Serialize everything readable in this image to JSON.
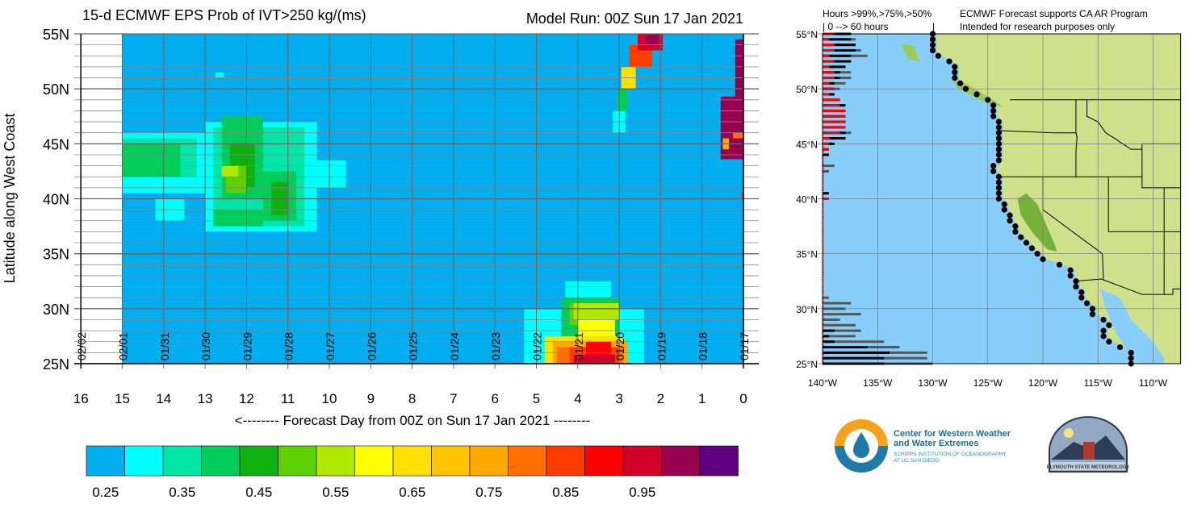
{
  "chart_data": [
    {
      "type": "heatmap",
      "title": "15-d ECMWF EPS Prob of IVT>250 kg/(ms)",
      "subtitle": "Model Run: 00Z Sun 17 Jan 2021",
      "xlabel": "<-------- Forecast Day from 00Z on Sun 17 Jan 2021 --------",
      "ylabel": "Latitude along West Coast",
      "xlim": [
        16,
        0
      ],
      "ylim": [
        25,
        55
      ],
      "x_ticks": [
        "16",
        "15",
        "14",
        "13",
        "12",
        "11",
        "10",
        "9",
        "8",
        "7",
        "6",
        "5",
        "4",
        "3",
        "2",
        "1",
        "0"
      ],
      "y_ticks": [
        "55N",
        "50N",
        "45N",
        "40N",
        "35N",
        "30N",
        "25N"
      ],
      "date_labels": [
        "02/02",
        "02/01",
        "01/31",
        "01/30",
        "01/29",
        "01/28",
        "01/27",
        "01/26",
        "01/25",
        "01/24",
        "01/23",
        "01/22",
        "01/21",
        "01/20",
        "01/19",
        "01/18",
        "01/17"
      ],
      "grid": true,
      "background_probability": 0.25,
      "data_start_day": 15,
      "regions": [
        {
          "day": [
            15,
            13.0
          ],
          "lat": [
            40.5,
            46
          ],
          "p": 0.3
        },
        {
          "day": [
            13.0,
            10.3
          ],
          "lat": [
            37,
            47
          ],
          "p": 0.3
        },
        {
          "day": [
            10.5,
            9.6
          ],
          "lat": [
            41,
            43.5
          ],
          "p": 0.3
        },
        {
          "day": [
            14.2,
            13.5
          ],
          "lat": [
            38,
            40
          ],
          "p": 0.3
        },
        {
          "day": [
            12.75,
            12.55
          ],
          "lat": [
            51,
            51.5
          ],
          "p": 0.3
        },
        {
          "day": [
            15,
            13.2
          ],
          "lat": [
            42,
            45.5
          ],
          "p": 0.35
        },
        {
          "day": [
            12.8,
            10.6
          ],
          "lat": [
            37.5,
            46.5
          ],
          "p": 0.35
        },
        {
          "day": [
            15,
            13.6
          ],
          "lat": [
            42,
            45
          ],
          "p": 0.4
        },
        {
          "day": [
            12.6,
            11.6
          ],
          "lat": [
            40,
            47.5
          ],
          "p": 0.4
        },
        {
          "day": [
            11.6,
            10.8
          ],
          "lat": [
            38,
            42.5
          ],
          "p": 0.4
        },
        {
          "day": [
            12.8,
            11.6
          ],
          "lat": [
            37.5,
            39
          ],
          "p": 0.4
        },
        {
          "day": [
            12.4,
            11.8
          ],
          "lat": [
            41,
            45
          ],
          "p": 0.45
        },
        {
          "day": [
            11.4,
            11.0
          ],
          "lat": [
            38.5,
            41.5
          ],
          "p": 0.45
        },
        {
          "day": [
            12.5,
            12.0
          ],
          "lat": [
            40.5,
            43
          ],
          "p": 0.5
        },
        {
          "day": [
            12.6,
            12.2
          ],
          "lat": [
            42,
            43
          ],
          "p": 0.55
        },
        {
          "day": [
            5.3,
            2.4
          ],
          "lat": [
            25,
            30
          ],
          "p": 0.3
        },
        {
          "day": [
            4.3,
            3.2
          ],
          "lat": [
            30,
            32.5
          ],
          "p": 0.3
        },
        {
          "day": [
            4.4,
            3.0
          ],
          "lat": [
            25,
            31
          ],
          "p": 0.4
        },
        {
          "day": [
            4.2,
            3.2
          ],
          "lat": [
            28.5,
            30.5
          ],
          "p": 0.5
        },
        {
          "day": [
            4.1,
            3.0
          ],
          "lat": [
            29,
            30.5
          ],
          "p": 0.55
        },
        {
          "day": [
            4.0,
            3.1
          ],
          "lat": [
            27.5,
            29
          ],
          "p": 0.6
        },
        {
          "day": [
            4.8,
            2.9
          ],
          "lat": [
            25,
            27.5
          ],
          "p": 0.65
        },
        {
          "day": [
            4.6,
            2.8
          ],
          "lat": [
            25,
            27
          ],
          "p": 0.75
        },
        {
          "day": [
            4.5,
            2.9
          ],
          "lat": [
            25,
            26.5
          ],
          "p": 0.8
        },
        {
          "day": [
            4.2,
            3.0
          ],
          "lat": [
            25,
            26.5
          ],
          "p": 0.85
        },
        {
          "day": [
            3.8,
            3.2
          ],
          "lat": [
            25,
            27
          ],
          "p": 0.9
        },
        {
          "day": [
            4.1,
            3.1
          ],
          "lat": [
            25,
            25.8
          ],
          "p": 0.95
        },
        {
          "day": [
            3.15,
            2.85
          ],
          "lat": [
            46,
            48
          ],
          "p": 0.3
        },
        {
          "day": [
            3.05,
            2.8
          ],
          "lat": [
            48,
            50
          ],
          "p": 0.4
        },
        {
          "day": [
            2.95,
            2.6
          ],
          "lat": [
            50,
            52
          ],
          "p": 0.65
        },
        {
          "day": [
            2.75,
            2.2
          ],
          "lat": [
            52,
            54
          ],
          "p": 0.85
        },
        {
          "day": [
            2.55,
            1.95
          ],
          "lat": [
            53.5,
            55
          ],
          "p": 0.95
        },
        {
          "day": [
            2.35,
            2.05
          ],
          "lat": [
            54,
            55
          ],
          "p": 1.0
        },
        {
          "day": [
            0.55,
            0.0
          ],
          "lat": [
            43.6,
            49.3
          ],
          "p": 1.0
        },
        {
          "day": [
            0.5,
            0.35
          ],
          "lat": [
            44.5,
            45.5
          ],
          "p": 0.75
        },
        {
          "day": [
            0.25,
            0.0
          ],
          "lat": [
            45.5,
            46
          ],
          "p": 0.8
        },
        {
          "day": [
            0.2,
            0.0
          ],
          "lat": [
            49.3,
            54.5
          ],
          "p": 1.0
        },
        {
          "day": [
            0.05,
            0.0
          ],
          "lat": [
            40,
            40.6
          ],
          "p": 0.85
        }
      ]
    },
    {
      "type": "bar",
      "orientation": "horizontal",
      "title": "Hours >99%,>75%,>50%",
      "subtitle": "| 0 --> 60 hours",
      "x_range_hours": [
        0,
        60
      ],
      "series_colors": {
        "gt99": "#ff0000",
        "gt75": "#000000",
        "gt50": "#555555"
      },
      "bars": [
        {
          "lat": 55.0,
          "gt99": 6.5,
          "gt75": 15.5,
          "gt50": 15.5
        },
        {
          "lat": 54.5,
          "gt99": 3.5,
          "gt75": 15.5,
          "gt50": 18
        },
        {
          "lat": 54.0,
          "gt99": 6.5,
          "gt75": 18,
          "gt50": 18
        },
        {
          "lat": 53.5,
          "gt99": 6.5,
          "gt75": 18,
          "gt50": 21
        },
        {
          "lat": 53.0,
          "gt99": 3.5,
          "gt75": 15.5,
          "gt50": 24.5
        },
        {
          "lat": 52.5,
          "gt99": 6.5,
          "gt75": 15.5,
          "gt50": 15.5
        },
        {
          "lat": 52.0,
          "gt99": 3.5,
          "gt75": 12.5,
          "gt50": 12.5
        },
        {
          "lat": 51.5,
          "gt99": 6.5,
          "gt75": 9.5,
          "gt50": 15.5
        },
        {
          "lat": 51.0,
          "gt99": 6.5,
          "gt75": 9.5,
          "gt50": 15.5
        },
        {
          "lat": 50.5,
          "gt99": 3.5,
          "gt75": 6.5,
          "gt50": 12.5
        },
        {
          "lat": 50.0,
          "gt99": 6.5,
          "gt75": 6.5,
          "gt50": 9.5
        },
        {
          "lat": 49.5,
          "gt99": 3.5,
          "gt75": 6.5,
          "gt50": 6.5
        },
        {
          "lat": 49.0,
          "gt99": 9.5,
          "gt75": 9.5,
          "gt50": 9.5
        },
        {
          "lat": 48.5,
          "gt99": 9.5,
          "gt75": 12.5,
          "gt50": 12.5
        },
        {
          "lat": 48.0,
          "gt99": 12.5,
          "gt75": 12.5,
          "gt50": 12.5
        },
        {
          "lat": 47.5,
          "gt99": 12.5,
          "gt75": 12.5,
          "gt50": 12.5
        },
        {
          "lat": 47.0,
          "gt99": 12.5,
          "gt75": 12.5,
          "gt50": 12.5
        },
        {
          "lat": 46.5,
          "gt99": 12.5,
          "gt75": 12.5,
          "gt50": 12.5
        },
        {
          "lat": 46.0,
          "gt99": 9.5,
          "gt75": 12.5,
          "gt50": 15.5
        },
        {
          "lat": 45.5,
          "gt99": 3.5,
          "gt75": 12.5,
          "gt50": 12.5
        },
        {
          "lat": 45.0,
          "gt99": 3.5,
          "gt75": 6.5,
          "gt50": 6.5
        },
        {
          "lat": 44.5,
          "gt99": 3.5,
          "gt75": 3.5,
          "gt50": 3.5
        },
        {
          "lat": 44.0,
          "gt99": 0,
          "gt75": 3.5,
          "gt50": 3.5
        },
        {
          "lat": 43.0,
          "gt99": 0,
          "gt75": 0,
          "gt50": 6.5
        },
        {
          "lat": 42.5,
          "gt99": 0,
          "gt75": 0,
          "gt50": 3.5
        },
        {
          "lat": 40.5,
          "gt99": 0,
          "gt75": 3.5,
          "gt50": 3.5
        },
        {
          "lat": 40.0,
          "gt99": 3.5,
          "gt75": 3.5,
          "gt50": 3.5
        },
        {
          "lat": 31.0,
          "gt99": 0,
          "gt75": 0,
          "gt50": 3.5
        },
        {
          "lat": 30.5,
          "gt99": 0,
          "gt75": 0,
          "gt50": 15.5
        },
        {
          "lat": 30.0,
          "gt99": 0,
          "gt75": 0,
          "gt50": 12.5
        },
        {
          "lat": 29.5,
          "gt99": 0,
          "gt75": 0,
          "gt50": 21
        },
        {
          "lat": 29.0,
          "gt99": 0,
          "gt75": 0,
          "gt50": 9.5
        },
        {
          "lat": 28.5,
          "gt99": 0,
          "gt75": 0,
          "gt50": 18
        },
        {
          "lat": 28.0,
          "gt99": 0,
          "gt75": 6.5,
          "gt50": 21
        },
        {
          "lat": 27.5,
          "gt99": 0,
          "gt75": 3.5,
          "gt50": 18
        },
        {
          "lat": 27.0,
          "gt99": 0,
          "gt75": 6.5,
          "gt50": 33.5
        },
        {
          "lat": 26.5,
          "gt99": 0,
          "gt75": 24.5,
          "gt50": 42
        },
        {
          "lat": 26.0,
          "gt99": 0,
          "gt75": 36.5,
          "gt50": 57
        },
        {
          "lat": 25.5,
          "gt99": 0,
          "gt75": 33.5,
          "gt50": 57
        },
        {
          "lat": 25.0,
          "gt99": 0,
          "gt75": 33.5,
          "gt50": 60
        }
      ],
      "coast_points": [
        [
          -130,
          55
        ],
        [
          -130,
          54.5
        ],
        [
          -130,
          54
        ],
        [
          -130,
          53.5
        ],
        [
          -129.5,
          53
        ],
        [
          -128.5,
          52.5
        ],
        [
          -128,
          52
        ],
        [
          -128,
          51.5
        ],
        [
          -128,
          51
        ],
        [
          -127.5,
          50.5
        ],
        [
          -127,
          50
        ],
        [
          -126,
          49.5
        ],
        [
          -125,
          49
        ],
        [
          -124.5,
          48.5
        ],
        [
          -124.5,
          48
        ],
        [
          -124.5,
          47.5
        ],
        [
          -124,
          47
        ],
        [
          -124,
          46.5
        ],
        [
          -124,
          46
        ],
        [
          -124,
          45.5
        ],
        [
          -124,
          45
        ],
        [
          -124,
          44.5
        ],
        [
          -124,
          44
        ],
        [
          -124,
          43.5
        ],
        [
          -124.5,
          43
        ],
        [
          -124.5,
          42.5
        ],
        [
          -124,
          42
        ],
        [
          -124,
          41.5
        ],
        [
          -124,
          41
        ],
        [
          -124,
          40.5
        ],
        [
          -124,
          40
        ],
        [
          -123.5,
          39.5
        ],
        [
          -123.5,
          39
        ],
        [
          -123,
          38.5
        ],
        [
          -123,
          38
        ],
        [
          -122.5,
          37.5
        ],
        [
          -122.5,
          37
        ],
        [
          -122,
          36.5
        ],
        [
          -121.5,
          36
        ],
        [
          -121,
          35.5
        ],
        [
          -120.5,
          35
        ],
        [
          -120,
          34.5
        ],
        [
          -118.5,
          34
        ],
        [
          -117.5,
          33.5
        ],
        [
          -117.5,
          33
        ],
        [
          -117,
          32.5
        ],
        [
          -117,
          32
        ],
        [
          -116.5,
          31.5
        ],
        [
          -116.5,
          31
        ],
        [
          -116,
          30.5
        ],
        [
          -115.5,
          30
        ],
        [
          -115.5,
          29.5
        ],
        [
          -114.5,
          29
        ],
        [
          -114,
          28.5
        ],
        [
          -114.5,
          28
        ],
        [
          -114.5,
          27.5
        ],
        [
          -114,
          27
        ],
        [
          -113,
          26.5
        ],
        [
          -112,
          26
        ],
        [
          -112,
          25.5
        ],
        [
          -112,
          25
        ]
      ],
      "lon_ticks": [
        "140°W",
        "135°W",
        "130°W",
        "125°W",
        "120°W",
        "115°W",
        "110°W"
      ],
      "lat_ticks": [
        "55°N",
        "50°N",
        "45°N",
        "40°N",
        "35°N",
        "30°N",
        "25°N"
      ],
      "lon_range": [
        -140,
        -107.5
      ],
      "lat_range": [
        25,
        55
      ]
    }
  ],
  "colorbar": {
    "colors": [
      "#00adef",
      "#00ffff",
      "#00e5a8",
      "#00cc5a",
      "#10b010",
      "#5cd000",
      "#b0e800",
      "#ffff00",
      "#ffe000",
      "#ffc400",
      "#ffa800",
      "#ff7000",
      "#ff3c00",
      "#ff0000",
      "#d0002a",
      "#980050",
      "#600080"
    ],
    "labels": [
      "0.25",
      "0.35",
      "0.45",
      "0.55",
      "0.65",
      "0.75",
      "0.85",
      "0.95"
    ]
  },
  "notes": {
    "line1": "ECMWF Forecast supports CA AR Program",
    "line2": "Intended for research purposes only"
  },
  "logos": {
    "cw3e_title1": "Center for Western Weather",
    "cw3e_title2": "and Water Extremes",
    "cw3e_sub1": "SCRIPPS INSTITUTION OF OCEANOGRAPHY",
    "cw3e_sub2": "AT UC SAN DIEGO",
    "psu": "PLYMOUTH STATE METEOROLOGY"
  },
  "colors": {
    "ocean": "#87cefa",
    "land": "#cfe08a",
    "grid": "#777777"
  }
}
